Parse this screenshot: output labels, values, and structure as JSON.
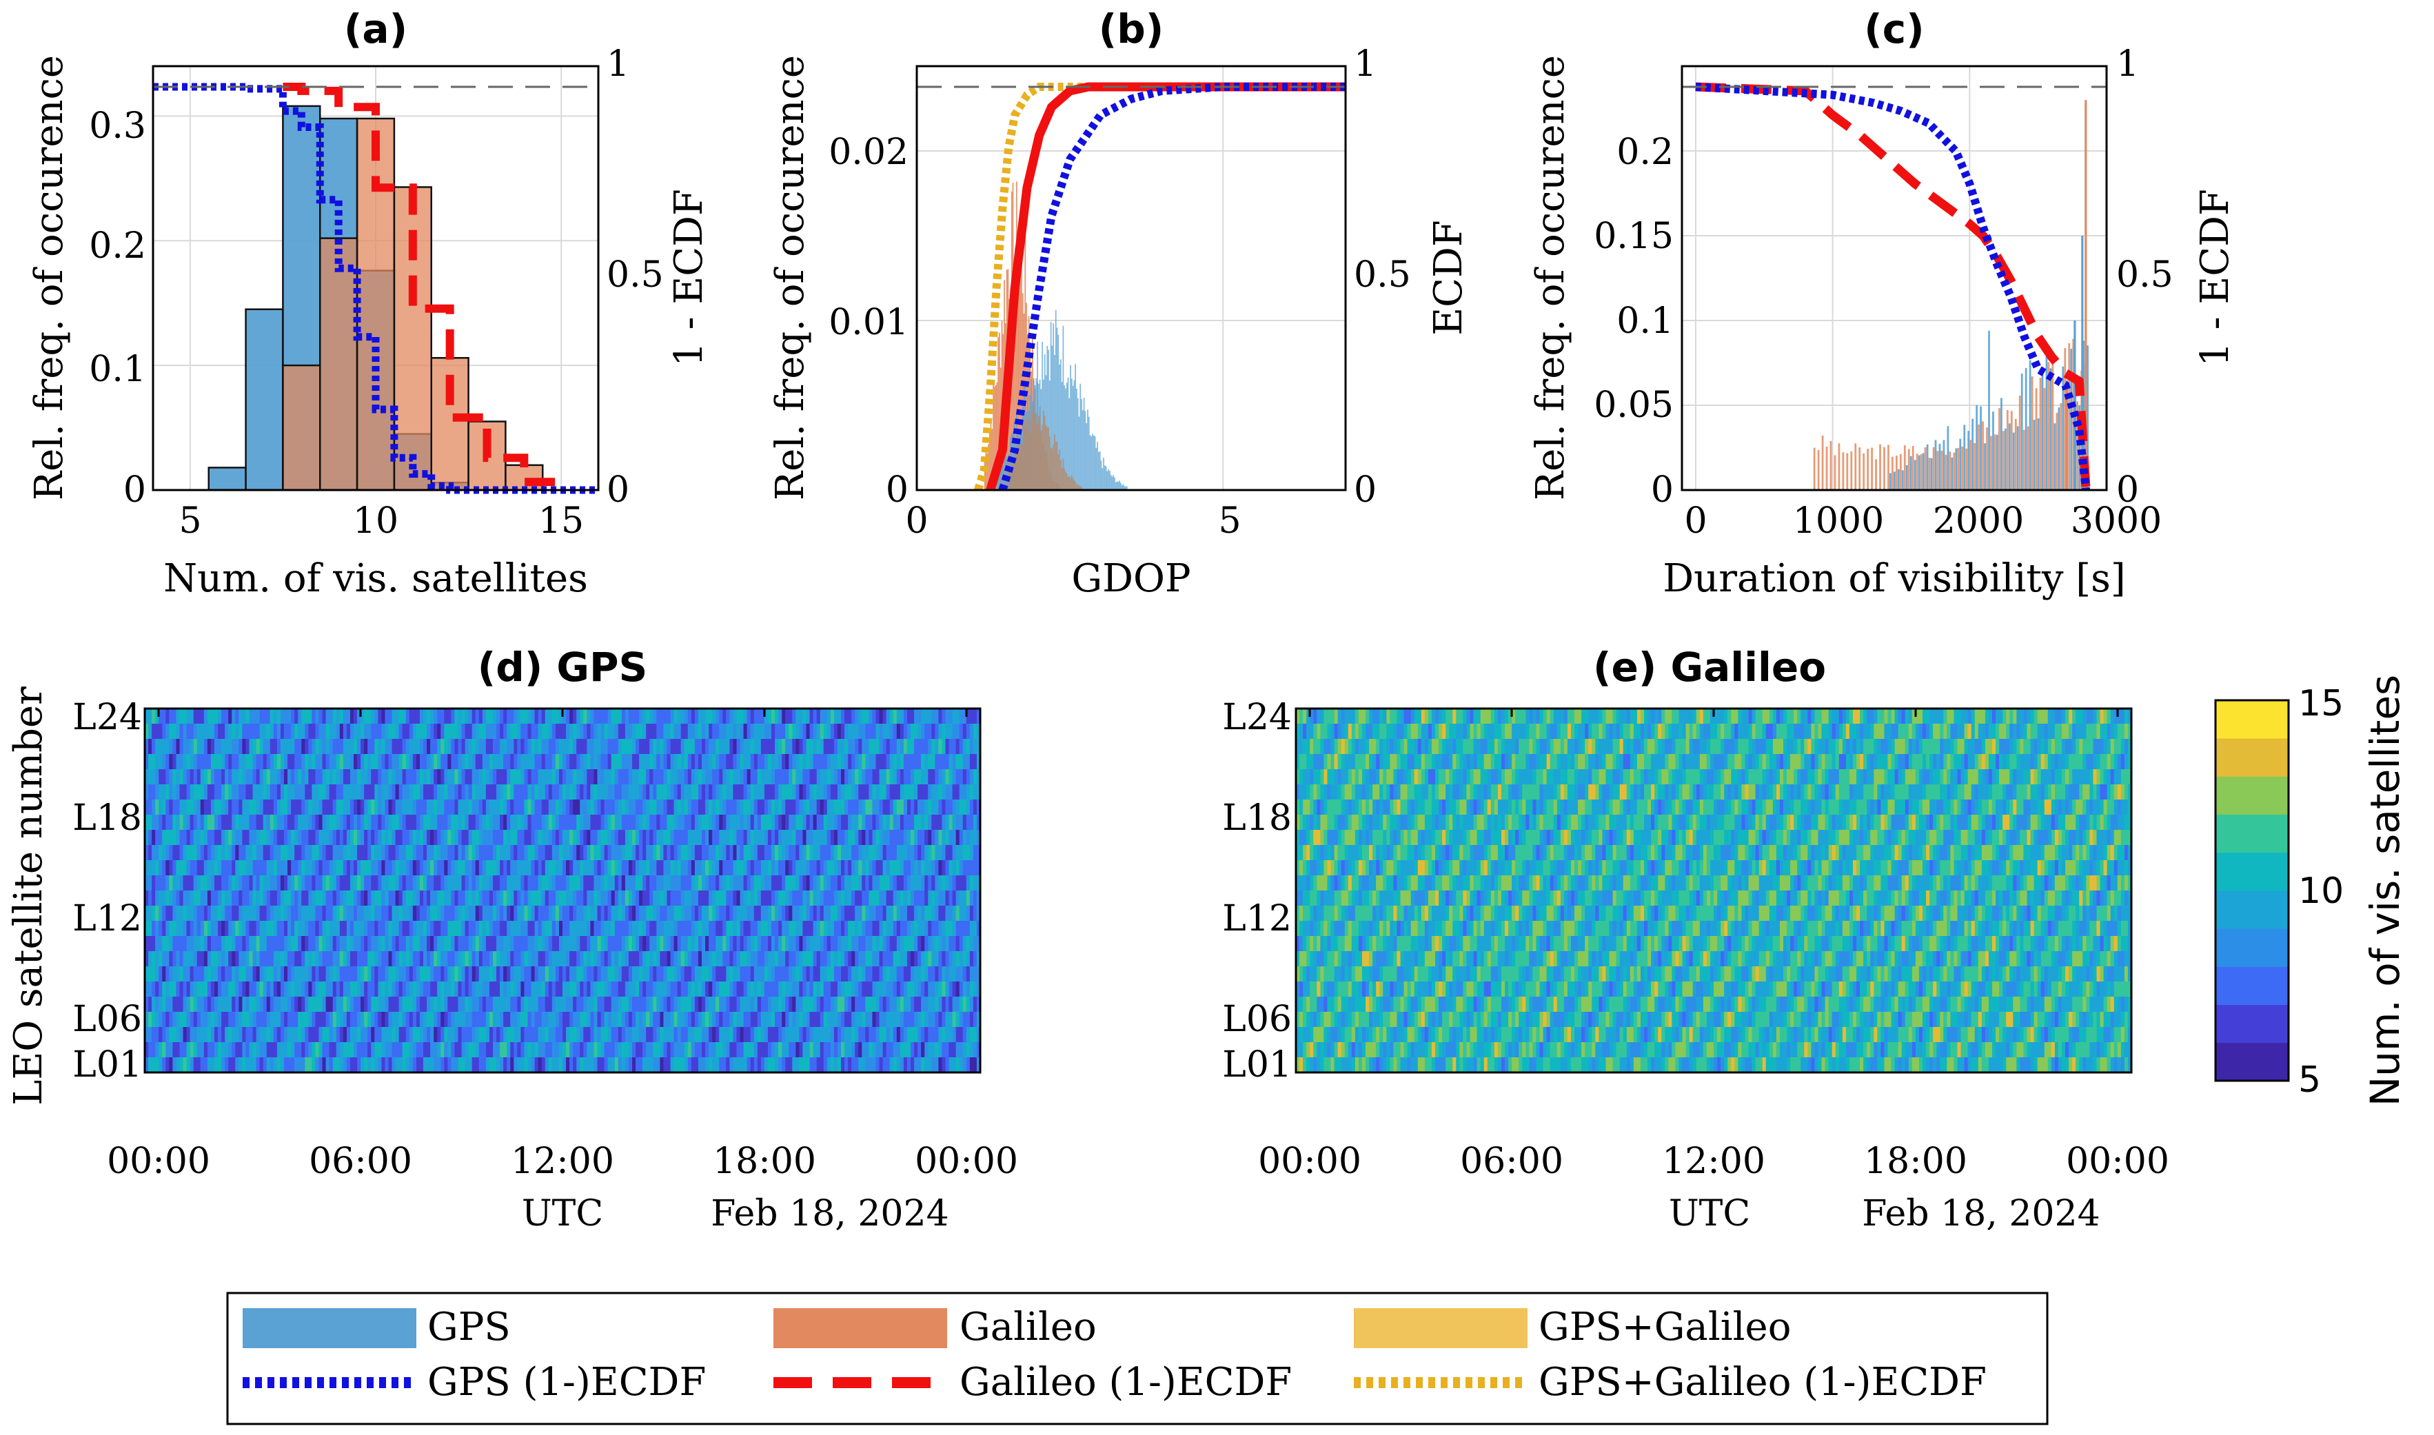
{
  "colors": {
    "gps": "#5aa1d4",
    "galileo": "#e2895f",
    "gps_galileo": "#f0c45a",
    "gps_line": "#1010e0",
    "galileo_line": "#f01010",
    "gps_galileo_line": "#e8b020"
  },
  "chart_data": [
    {
      "id": "a",
      "type": "bar",
      "title": "(a)",
      "xlabel": "Num. of vis. satellites",
      "ylabel": "Rel. freq. of occurence",
      "y2label": "1 - ECDF",
      "xlim": [
        4,
        16
      ],
      "ylim": [
        0,
        0.34
      ],
      "y2lim": [
        0,
        1
      ],
      "x_ticks": [
        "5",
        "10",
        "15"
      ],
      "y_ticks": [
        "0",
        "0.1",
        "0.2",
        "0.3"
      ],
      "y2_ticks": [
        "0",
        "0.5",
        "1"
      ],
      "bin_width": 1,
      "series": [
        {
          "name": "GPS",
          "x": [
            6,
            7,
            8,
            9,
            10,
            11,
            12
          ],
          "values": [
            0.018,
            0.145,
            0.308,
            0.298,
            0.176,
            0.045,
            0.006
          ]
        },
        {
          "name": "Galileo",
          "x": [
            8,
            9,
            10,
            11,
            12,
            13,
            14
          ],
          "values": [
            0.1,
            0.202,
            0.298,
            0.243,
            0.106,
            0.055,
            0.02
          ]
        }
      ],
      "ecdf": [
        {
          "name": "GPS (1-)ECDF",
          "x": [
            4,
            6.5,
            7.5,
            8,
            8.5,
            9,
            9.5,
            10,
            10.5,
            11,
            11.5,
            12,
            16
          ],
          "y": [
            1,
            0.995,
            0.94,
            0.9,
            0.72,
            0.55,
            0.38,
            0.2,
            0.08,
            0.04,
            0.01,
            0.0,
            0.0
          ]
        },
        {
          "name": "Galileo (1-)ECDF",
          "x": [
            7.5,
            8,
            9,
            10,
            11,
            12,
            13,
            14,
            15
          ],
          "y": [
            1,
            0.99,
            0.95,
            0.75,
            0.45,
            0.18,
            0.08,
            0.02,
            0.0
          ]
        }
      ]
    },
    {
      "id": "b",
      "type": "bar",
      "title": "(b)",
      "xlabel": "GDOP",
      "ylabel": "Rel. freq. of occurence",
      "y2label": "ECDF",
      "xlim": [
        0,
        7
      ],
      "ylim": [
        0,
        0.025
      ],
      "y2lim": [
        0,
        1
      ],
      "x_ticks": [
        "0",
        "5"
      ],
      "y_ticks": [
        "0",
        "0.01",
        "0.02"
      ],
      "y2_ticks": [
        "0",
        "0.5",
        "1"
      ],
      "series": [
        {
          "name": "Galileo",
          "peak_x": 1.6,
          "peak_value": 0.016,
          "range": [
            1.2,
            2.8
          ]
        },
        {
          "name": "GPS",
          "peak_x": 2.2,
          "peak_value": 0.01,
          "range": [
            1.4,
            3.8
          ]
        }
      ],
      "ecdf": [
        {
          "name": "GPS+Galileo (1-)ECDF",
          "x": [
            1.0,
            1.1,
            1.2,
            1.3,
            1.4,
            1.5,
            1.6,
            1.8,
            2.0,
            7.0
          ],
          "y": [
            0,
            0.05,
            0.25,
            0.5,
            0.7,
            0.85,
            0.93,
            0.98,
            1,
            1
          ]
        },
        {
          "name": "Galileo (1-)ECDF",
          "x": [
            1.2,
            1.4,
            1.5,
            1.6,
            1.8,
            2.0,
            2.2,
            2.5,
            2.8,
            7.0
          ],
          "y": [
            0,
            0.1,
            0.3,
            0.5,
            0.75,
            0.88,
            0.95,
            0.99,
            1,
            1
          ]
        },
        {
          "name": "GPS (1-)ECDF",
          "x": [
            1.4,
            1.6,
            1.8,
            2.0,
            2.2,
            2.5,
            3.0,
            3.5,
            4.0,
            5.0,
            7.0
          ],
          "y": [
            0,
            0.1,
            0.3,
            0.5,
            0.68,
            0.82,
            0.93,
            0.97,
            0.99,
            1,
            1
          ]
        }
      ]
    },
    {
      "id": "c",
      "type": "bar",
      "title": "(c)",
      "xlabel": "Duration of visibility [s]",
      "ylabel": "Rel. freq. of occurence",
      "y2label": "1 - ECDF",
      "xlim": [
        -100,
        3000
      ],
      "ylim": [
        0,
        0.25
      ],
      "y2lim": [
        0,
        1
      ],
      "x_ticks": [
        "0",
        "1000",
        "2000",
        "3000"
      ],
      "y_ticks": [
        "0",
        "0.05",
        "0.1",
        "0.15",
        "0.2"
      ],
      "y2_ticks": [
        "0",
        "0.5",
        "1"
      ],
      "series": [
        {
          "name": "Galileo",
          "note": "spike",
          "spike_x": 2840,
          "spike_value": 0.23
        },
        {
          "name": "GPS",
          "note": "spike",
          "spike_x": 2820,
          "spike_value": 0.15
        }
      ],
      "ecdf": [
        {
          "name": "GPS (1-)ECDF",
          "x": [
            0,
            500,
            1000,
            1300,
            1500,
            1700,
            1900,
            2000,
            2100,
            2200,
            2300,
            2400,
            2500,
            2600,
            2700,
            2800,
            2850
          ],
          "y": [
            1,
            0.99,
            0.98,
            0.96,
            0.94,
            0.91,
            0.84,
            0.76,
            0.65,
            0.56,
            0.48,
            0.38,
            0.3,
            0.28,
            0.26,
            0.15,
            0.0
          ]
        },
        {
          "name": "Galileo (1-)ECDF",
          "x": [
            0,
            800,
            1000,
            1200,
            1400,
            1600,
            1800,
            2000,
            2100,
            2200,
            2300,
            2400,
            2500,
            2600,
            2700,
            2800,
            2850
          ],
          "y": [
            1,
            0.99,
            0.93,
            0.88,
            0.82,
            0.76,
            0.71,
            0.66,
            0.63,
            0.58,
            0.52,
            0.45,
            0.38,
            0.33,
            0.29,
            0.27,
            0.0
          ]
        }
      ]
    },
    {
      "id": "d",
      "type": "heatmap",
      "title": "(d) GPS",
      "xlabel": "UTC",
      "date_label": "Feb 18, 2024",
      "ylabel": "LEO satellite number",
      "x_ticks": [
        "00:00",
        "06:00",
        "12:00",
        "18:00",
        "00:00"
      ],
      "y_ticks": [
        "L24",
        "L18",
        "L12",
        "L06",
        "L01"
      ],
      "rows": 24,
      "columns": 288,
      "mean_value": 8.5,
      "value_range": [
        5,
        15
      ]
    },
    {
      "id": "e",
      "type": "heatmap",
      "title": "(e) Galileo",
      "xlabel": "UTC",
      "date_label": "Feb 18, 2024",
      "ylabel": "",
      "x_ticks": [
        "00:00",
        "06:00",
        "12:00",
        "18:00",
        "00:00"
      ],
      "y_ticks": [
        "L24",
        "L18",
        "L12",
        "L06",
        "L01"
      ],
      "rows": 24,
      "columns": 288,
      "mean_value": 10.5,
      "value_range": [
        5,
        15
      ]
    }
  ],
  "colorbar": {
    "label": "Num. of vis. satellites",
    "ticks": [
      "15",
      "10",
      "5"
    ],
    "min": 5,
    "max": 15,
    "steps": 10
  },
  "legend": {
    "items": [
      {
        "label": "GPS",
        "kind": "patch",
        "color_key": "gps"
      },
      {
        "label": "Galileo",
        "kind": "patch",
        "color_key": "galileo"
      },
      {
        "label": "GPS+Galileo",
        "kind": "patch",
        "color_key": "gps_galileo"
      },
      {
        "label": "GPS (1-)ECDF",
        "kind": "dotted",
        "color_key": "gps_line"
      },
      {
        "label": "Galileo (1-)ECDF",
        "kind": "dashed",
        "color_key": "galileo_line"
      },
      {
        "label": "GPS+Galileo (1-)ECDF",
        "kind": "dotted",
        "color_key": "gps_galileo_line"
      }
    ]
  }
}
